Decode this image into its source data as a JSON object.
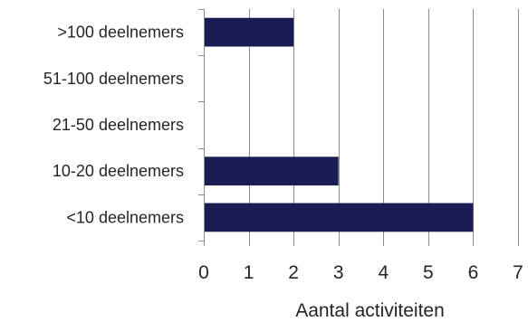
{
  "chart_data": {
    "type": "bar",
    "orientation": "horizontal",
    "categories": [
      ">100 deelnemers",
      "51-100 deelnemers",
      "21-50 deelnemers",
      "10-20 deelnemers",
      "<10 deelnemers"
    ],
    "values": [
      2,
      0,
      0,
      3,
      6
    ],
    "title": "",
    "xlabel": "Aantal activiteiten",
    "ylabel": "",
    "xlim": [
      0,
      7
    ],
    "xticks": [
      "0",
      "1",
      "2",
      "3",
      "4",
      "5",
      "6",
      "7"
    ],
    "grid": "vertical",
    "legend": "none",
    "bar_color": "#1c1c54",
    "grid_color": "#8c8c8c"
  }
}
